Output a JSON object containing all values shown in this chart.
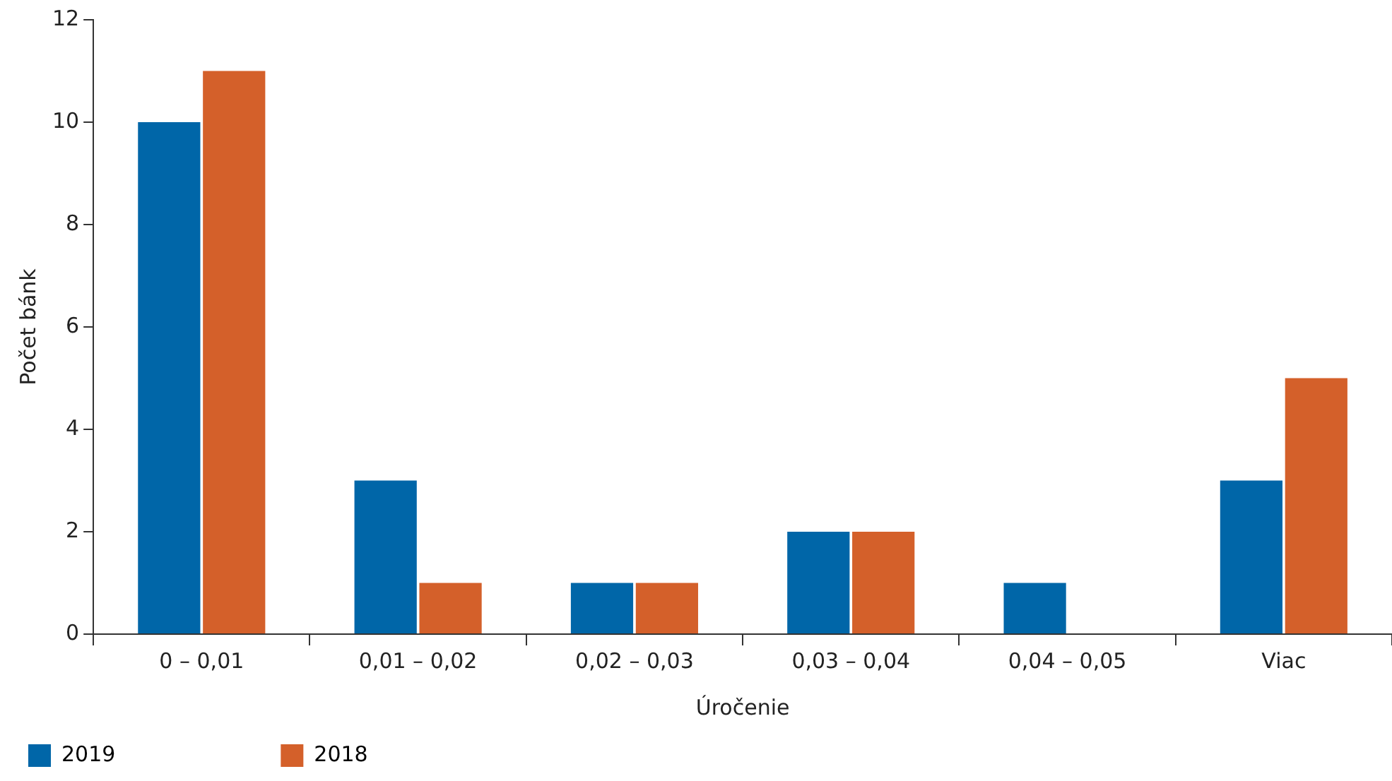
{
  "chart_data": {
    "type": "bar",
    "xlabel": "Úročenie",
    "ylabel": "Počet bánk",
    "categories": [
      "0 – 0,01",
      "0,01 – 0,02",
      "0,02 – 0,03",
      "0,03 – 0,04",
      "0,04 – 0,05",
      "Viac"
    ],
    "series": [
      {
        "name": "2019",
        "color": "#0066a8",
        "values": [
          10,
          3,
          1,
          2,
          1,
          3
        ]
      },
      {
        "name": "2018",
        "color": "#d4602a",
        "values": [
          11,
          1,
          1,
          2,
          0,
          5
        ]
      }
    ],
    "ylim": [
      0,
      12
    ],
    "yticks": [
      0,
      2,
      4,
      6,
      8,
      10,
      12
    ],
    "grid": false,
    "legend": "bottom left"
  }
}
